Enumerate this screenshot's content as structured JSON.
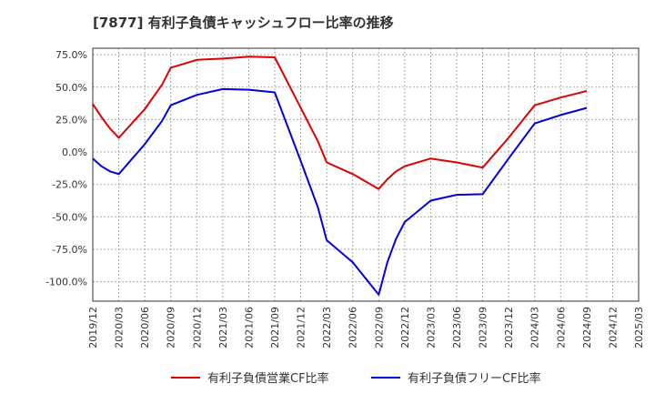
{
  "chart_data": {
    "type": "line",
    "title": "[7877]  有利子負債キャッシュフロー比率の推移",
    "xlabel": "",
    "ylabel": "",
    "x_ticks": [
      "2019/12",
      "2020/03",
      "2020/06",
      "2020/09",
      "2020/12",
      "2021/03",
      "2021/06",
      "2021/09",
      "2021/12",
      "2022/03",
      "2022/06",
      "2022/09",
      "2022/12",
      "2023/03",
      "2023/06",
      "2023/09",
      "2023/12",
      "2024/03",
      "2024/06",
      "2024/09",
      "2024/12",
      "2025/03"
    ],
    "y_ticks": [
      75,
      50,
      25,
      0,
      -25,
      -50,
      -75,
      -100
    ],
    "y_tick_labels": [
      "75.0%",
      "50.0%",
      "25.0%",
      "0.0%",
      "-25.0%",
      "-50.0%",
      "-75.0%",
      "-100.0%"
    ],
    "ylim": [
      -115,
      80
    ],
    "grid": true,
    "legend_position": "bottom",
    "series": [
      {
        "name": "有利子負債営業CF比率",
        "color": "#dd0000",
        "points": [
          [
            "2019/12",
            37
          ],
          [
            "2020/01",
            27
          ],
          [
            "2020/02",
            18
          ],
          [
            "2020/03",
            11
          ],
          [
            "2020/06",
            33
          ],
          [
            "2020/08",
            52
          ],
          [
            "2020/09",
            65
          ],
          [
            "2020/12",
            71
          ],
          [
            "2021/03",
            72
          ],
          [
            "2021/06",
            73.5
          ],
          [
            "2021/09",
            73
          ],
          [
            "2021/12",
            34
          ],
          [
            "2022/02",
            8
          ],
          [
            "2022/03",
            -8
          ],
          [
            "2022/06",
            -17
          ],
          [
            "2022/09",
            -28.5
          ],
          [
            "2022/10",
            -21
          ],
          [
            "2022/11",
            -15
          ],
          [
            "2022/12",
            -11
          ],
          [
            "2023/03",
            -5
          ],
          [
            "2023/06",
            -8
          ],
          [
            "2023/09",
            -12
          ],
          [
            "2023/12",
            11
          ],
          [
            "2024/03",
            36
          ],
          [
            "2024/06",
            42
          ],
          [
            "2024/09",
            47
          ]
        ]
      },
      {
        "name": "有利子負債フリーCF比率",
        "color": "#0000dd",
        "points": [
          [
            "2019/12",
            -5
          ],
          [
            "2020/01",
            -11
          ],
          [
            "2020/02",
            -15
          ],
          [
            "2020/03",
            -17
          ],
          [
            "2020/06",
            6
          ],
          [
            "2020/08",
            24
          ],
          [
            "2020/09",
            36
          ],
          [
            "2020/12",
            44
          ],
          [
            "2021/03",
            48.5
          ],
          [
            "2021/06",
            48
          ],
          [
            "2021/09",
            46
          ],
          [
            "2021/12",
            -7
          ],
          [
            "2022/02",
            -43
          ],
          [
            "2022/03",
            -68
          ],
          [
            "2022/06",
            -85
          ],
          [
            "2022/09",
            -110
          ],
          [
            "2022/10",
            -85
          ],
          [
            "2022/11",
            -67
          ],
          [
            "2022/12",
            -54
          ],
          [
            "2023/03",
            -37.5
          ],
          [
            "2023/06",
            -33
          ],
          [
            "2023/09",
            -32.5
          ],
          [
            "2023/12",
            -5
          ],
          [
            "2024/03",
            22
          ],
          [
            "2024/06",
            28.5
          ],
          [
            "2024/09",
            34
          ]
        ]
      }
    ]
  }
}
